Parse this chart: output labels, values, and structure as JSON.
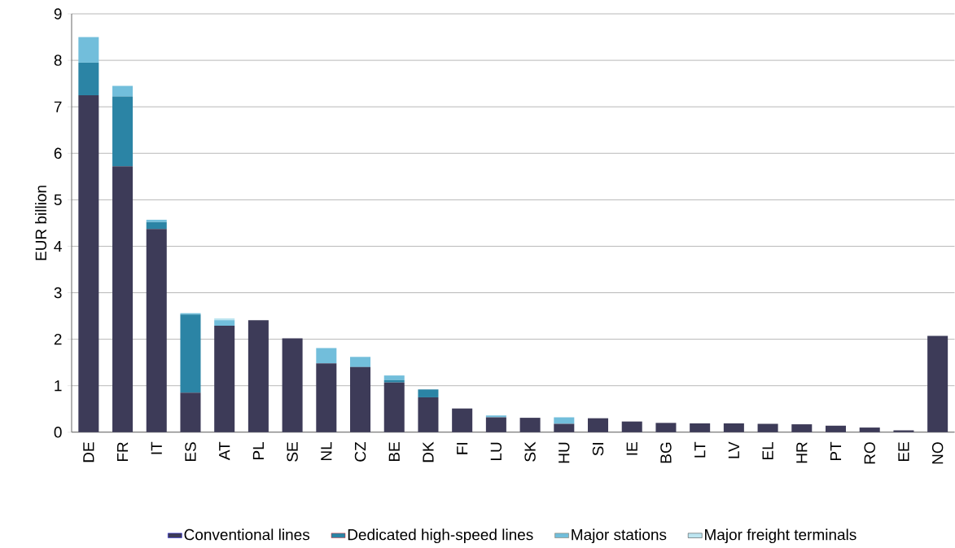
{
  "chart_data": {
    "type": "bar",
    "stacked": true,
    "ylabel": "EUR billion",
    "categories": [
      "DE",
      "FR",
      "IT",
      "ES",
      "AT",
      "PL",
      "SE",
      "NL",
      "CZ",
      "BE",
      "DK",
      "FI",
      "LU",
      "SK",
      "HU",
      "SI",
      "IE",
      "BG",
      "LT",
      "LV",
      "EL",
      "HR",
      "PT",
      "RO",
      "EE",
      "NO"
    ],
    "series": [
      {
        "name": "Conventional lines",
        "color": "#3d3b58",
        "values": [
          7.25,
          5.72,
          4.37,
          0.85,
          2.29,
          2.41,
          2.02,
          1.48,
          1.4,
          1.07,
          0.75,
          0.51,
          0.32,
          0.31,
          0.18,
          0.3,
          0.23,
          0.2,
          0.19,
          0.19,
          0.18,
          0.17,
          0.14,
          0.1,
          0.04,
          2.07
        ]
      },
      {
        "name": "Dedicated high-speed lines",
        "color": "#2b84a5",
        "values": [
          0.7,
          1.5,
          0.15,
          1.68,
          0,
          0,
          0,
          0,
          0,
          0.05,
          0.17,
          0,
          0,
          0,
          0,
          0,
          0,
          0,
          0,
          0,
          0,
          0,
          0,
          0,
          0,
          0
        ]
      },
      {
        "name": "Major stations",
        "color": "#72bedb",
        "values": [
          0.55,
          0.23,
          0.05,
          0.03,
          0.12,
          0,
          0,
          0.33,
          0.22,
          0.1,
          0,
          0,
          0.04,
          0,
          0.14,
          0,
          0,
          0,
          0,
          0,
          0,
          0,
          0,
          0,
          0,
          0
        ]
      },
      {
        "name": "Major freight terminals",
        "color": "#bde5f0",
        "values": [
          0,
          0,
          0,
          0,
          0.04,
          0,
          0,
          0,
          0,
          0,
          0,
          0,
          null,
          0,
          0,
          0,
          0,
          0,
          0,
          0,
          0,
          0,
          0,
          0,
          0,
          0
        ]
      }
    ],
    "ylim": [
      0,
      9
    ],
    "yticks": [
      0,
      1,
      2,
      3,
      4,
      5,
      6,
      7,
      8,
      9
    ],
    "grid": "y",
    "legend": "bottom"
  }
}
